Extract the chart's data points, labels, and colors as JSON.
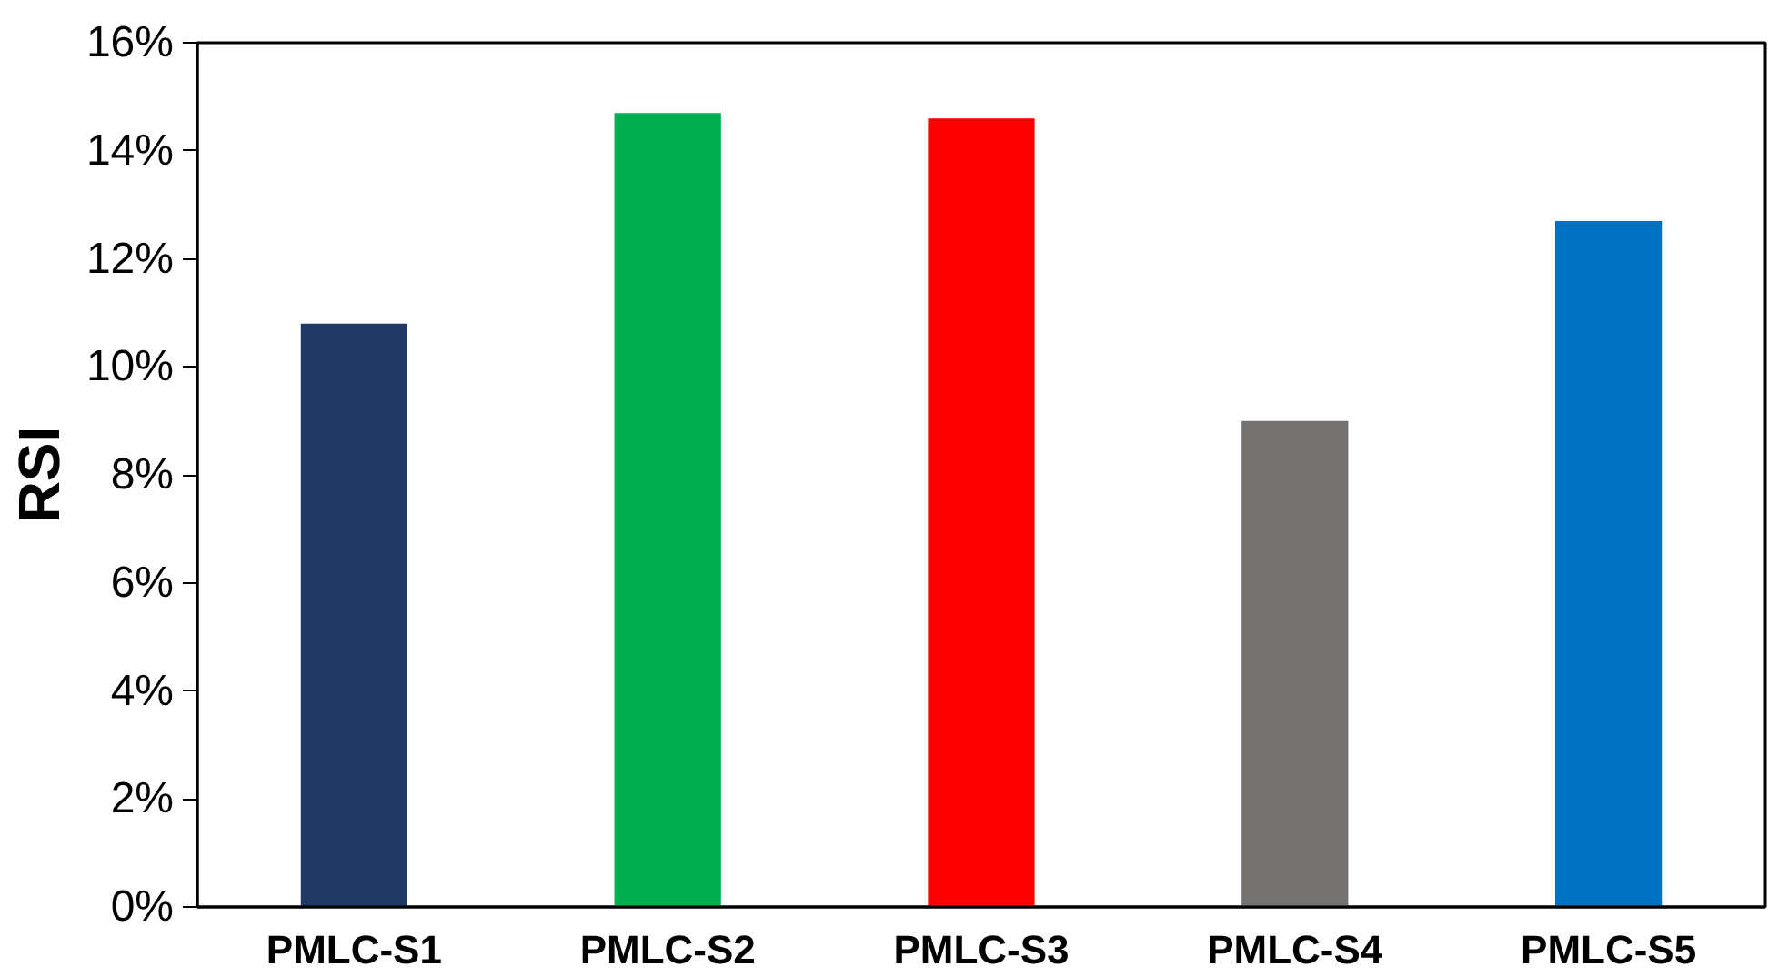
{
  "chart_data": {
    "type": "bar",
    "ylabel": "RSI",
    "categories": [
      "PMLC-S1",
      "PMLC-S2",
      "PMLC-S3",
      "PMLC-S4",
      "PMLC-S5"
    ],
    "values": [
      10.8,
      14.7,
      14.6,
      9.0,
      12.7
    ],
    "colors": [
      "#1f3864",
      "#00b050",
      "#ff0000",
      "#767171",
      "#0070c0"
    ],
    "ylim": [
      0,
      16
    ],
    "yticks": [
      {
        "value": 0,
        "label": "0%"
      },
      {
        "value": 2,
        "label": "2%"
      },
      {
        "value": 4,
        "label": "4%"
      },
      {
        "value": 6,
        "label": "6%"
      },
      {
        "value": 8,
        "label": "8%"
      },
      {
        "value": 10,
        "label": "10%"
      },
      {
        "value": 12,
        "label": "12%"
      },
      {
        "value": 14,
        "label": "14%"
      },
      {
        "value": 16,
        "label": "16%"
      }
    ],
    "grid": false
  }
}
